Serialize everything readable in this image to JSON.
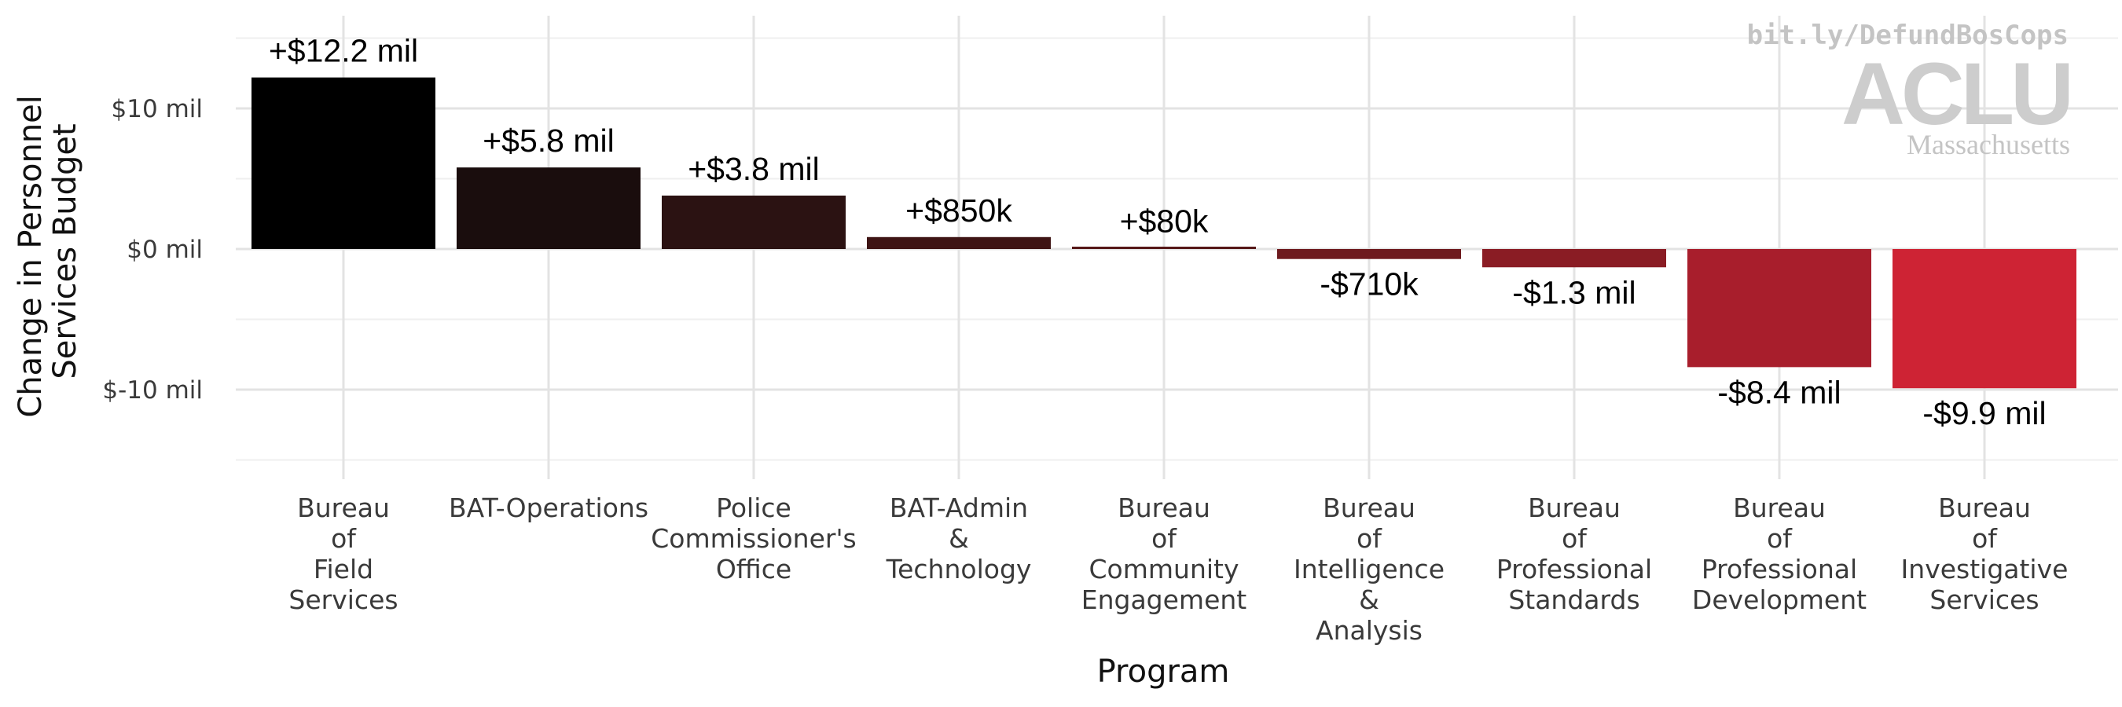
{
  "chart_data": {
    "type": "bar",
    "xlabel": "Program",
    "ylabel": "Change in Personnel Services Budget",
    "ylim": [
      -15.5,
      16.5
    ],
    "y_ticks": [
      {
        "value": 10,
        "label": "$10 mil"
      },
      {
        "value": 0,
        "label": "$0 mil"
      },
      {
        "value": -10,
        "label": "$-10 mil"
      }
    ],
    "grid": true,
    "categories": [
      "Bureau of Field Services",
      "BAT-Operations",
      "Police Commissioner's Office",
      "BAT-Admin & Technology",
      "Bureau of Community Engagement",
      "Bureau of Intelligence & Analysis",
      "Bureau of Professional Standards",
      "Bureau of Professional Development",
      "Bureau of Investigative Services"
    ],
    "category_lines": [
      [
        "Bureau",
        "of",
        "Field",
        "Services"
      ],
      [
        "BAT-Operations"
      ],
      [
        "Police",
        "Commissioner's",
        "Office"
      ],
      [
        "BAT-Admin",
        "&",
        "Technology"
      ],
      [
        "Bureau",
        "of",
        "Community",
        "Engagement"
      ],
      [
        "Bureau",
        "of",
        "Intelligence",
        "&",
        "Analysis"
      ],
      [
        "Bureau",
        "of",
        "Professional",
        "Standards"
      ],
      [
        "Bureau",
        "of",
        "Professional",
        "Development"
      ],
      [
        "Bureau",
        "of",
        "Investigative",
        "Services"
      ]
    ],
    "values": [
      12.2,
      5.8,
      3.8,
      0.85,
      0.08,
      -0.71,
      -1.3,
      -8.4,
      -9.9
    ],
    "data_labels": [
      "+$12.2 mil",
      "+$5.8 mil",
      "+$3.8 mil",
      "+$850k",
      "+$80k",
      "-$710k",
      "-$1.3 mil",
      "-$8.4 mil",
      "-$9.9 mil"
    ],
    "colors": [
      "#000000",
      "#1a0d0d",
      "#2b1212",
      "#3e1414",
      "#561818",
      "#6e1a1e",
      "#8a1c24",
      "#a81e2c",
      "#ce2334"
    ]
  },
  "watermark": {
    "url": "bit.ly/DefundBosCops",
    "logo": "ACLU",
    "org": "Massachusetts"
  }
}
